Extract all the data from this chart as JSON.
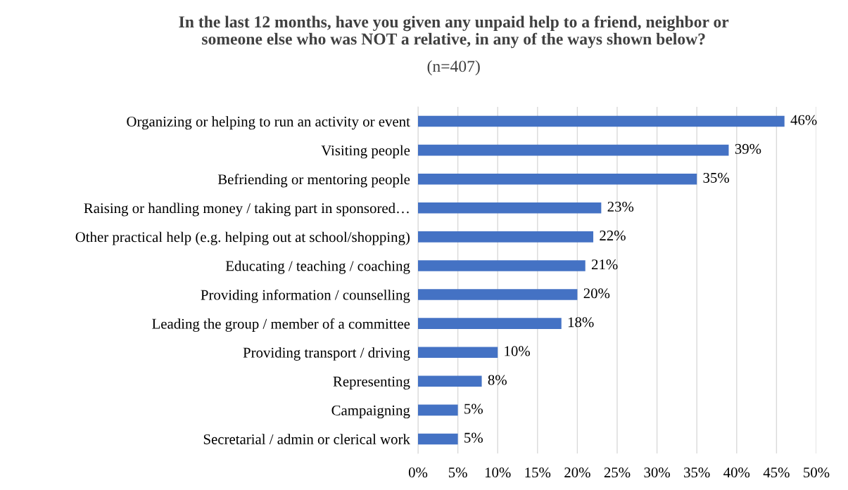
{
  "chart_data": {
    "type": "bar",
    "orientation": "horizontal",
    "title": "In the last 12 months, have you given any unpaid help to a friend, neighbor or\nsomeone else who was NOT a relative, in any of the ways shown below?",
    "subtitle": "(n=407)",
    "categories": [
      "Organizing or helping to run an activity or event",
      "Visiting people",
      "Befriending or mentoring people",
      "Raising or handling money / taking part in sponsored…",
      "Other practical help (e.g. helping out at school/shopping)",
      "Educating / teaching / coaching",
      "Providing information / counselling",
      "Leading the group / member of a committee",
      "Providing transport / driving",
      "Representing",
      "Campaigning",
      "Secretarial / admin or clerical work"
    ],
    "values": [
      46,
      39,
      35,
      23,
      22,
      21,
      20,
      18,
      10,
      8,
      5,
      5
    ],
    "value_labels": [
      "46%",
      "39%",
      "35%",
      "23%",
      "22%",
      "21%",
      "20%",
      "18%",
      "10%",
      "8%",
      "5%",
      "5%"
    ],
    "color": "#4472c4",
    "xlim": [
      0,
      50
    ],
    "xticks": [
      {
        "value": 0,
        "label": "0%"
      },
      {
        "value": 5,
        "label": "5%"
      },
      {
        "value": 10,
        "label": "10%"
      },
      {
        "value": 15,
        "label": "15%"
      },
      {
        "value": 20,
        "label": "20%"
      },
      {
        "value": 25,
        "label": "25%"
      },
      {
        "value": 30,
        "label": "30%"
      },
      {
        "value": 35,
        "label": "35%"
      },
      {
        "value": 40,
        "label": "40%"
      },
      {
        "value": 45,
        "label": "45%"
      },
      {
        "value": 50,
        "label": "50%"
      }
    ],
    "grid": "x",
    "legend": false
  }
}
